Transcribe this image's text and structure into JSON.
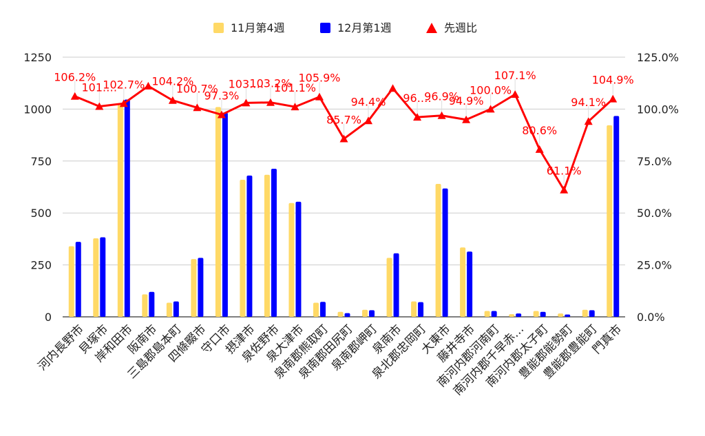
{
  "chart_data": {
    "type": "bar",
    "categories": [
      "河内長野市",
      "貝塚市",
      "岸和田市",
      "阪南市",
      "三島郡島本町",
      "四條畷市",
      "守口市",
      "摂津市",
      "泉佐野市",
      "泉大津市",
      "泉南郡熊取町",
      "泉南郡田尻町",
      "泉南郡岬町",
      "泉南市",
      "泉北郡忠岡町",
      "大東市",
      "藤井寺市",
      "南河内郡河南町",
      "南河内郡千早赤…",
      "南河内郡太子町",
      "豊能郡能勢町",
      "豊能郡豊能町",
      "門真市"
    ],
    "series": [
      {
        "name": "11月第4週",
        "type": "bar",
        "axis": "left",
        "color": "#FFD966",
        "values": [
          340,
          378,
          1020,
          108,
          68,
          278,
          1010,
          660,
          684,
          548,
          68,
          24,
          34,
          284,
          74,
          640,
          334,
          28,
          13,
          28,
          16,
          34,
          922
        ]
      },
      {
        "name": "12月第1週",
        "type": "bar",
        "axis": "left",
        "color": "#0000FF",
        "values": [
          361,
          383,
          1046,
          120,
          74,
          284,
          983,
          680,
          713,
          554,
          72,
          18,
          32,
          306,
          71,
          618,
          314,
          28,
          16,
          24,
          11,
          32,
          967
        ]
      },
      {
        "name": "先週比",
        "type": "line",
        "axis": "right",
        "color": "#FF0000",
        "marker": "triangle",
        "values": [
          106.2,
          101.3,
          102.7,
          111.1,
          104.2,
          100.7,
          97.3,
          103.0,
          103.2,
          101.1,
          105.9,
          85.7,
          94.4,
          110.0,
          96.1,
          96.9,
          94.9,
          100.0,
          107.1,
          80.6,
          61.1,
          94.1,
          104.9
        ]
      }
    ],
    "point_labels": [
      "106.2%",
      "101.…",
      "102.7%",
      "",
      "104.2%",
      "100.7%",
      "97.3%",
      "103.…",
      "103.2%",
      "101.1%",
      "105.9%",
      "85.7%",
      "94.4%",
      "",
      "96.…",
      "96.9%",
      "94.9%",
      "100.0%",
      "107.1%",
      "80.6%",
      "61.1%",
      "94.1%",
      "104.9%"
    ],
    "left_axis": {
      "range": [
        0,
        1250
      ],
      "ticks": [
        "0",
        "250",
        "500",
        "750",
        "1000",
        "1250"
      ]
    },
    "right_axis": {
      "range": [
        0,
        125
      ],
      "ticks": [
        "0.0%",
        "25.0%",
        "50.0%",
        "75.0%",
        "100.0%",
        "125.0%"
      ]
    },
    "legend_position": "top-center",
    "grid": true
  }
}
